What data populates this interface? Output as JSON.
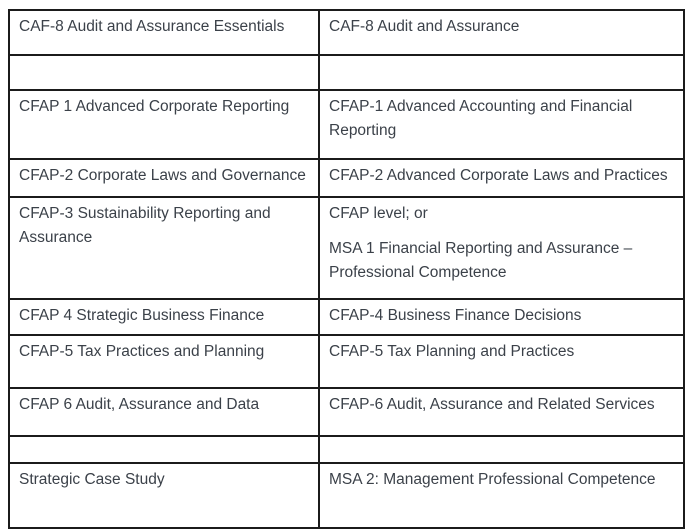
{
  "page": {
    "background": "#ffffff"
  },
  "colors": {
    "table_border": "#1b1b1b",
    "text": "#3b4149"
  },
  "table": {
    "rows": [
      {
        "left": "CAF-8 Audit and Assurance Essentials",
        "right": "CAF-8 Audit and Assurance"
      },
      {
        "left": "",
        "right": ""
      },
      {
        "left": "CFAP 1 Advanced Corporate Reporting",
        "right": "CFAP-1 Advanced Accounting and Financial Reporting"
      },
      {
        "left": "CFAP-2 Corporate Laws and Governance",
        "right": "CFAP-2 Advanced Corporate Laws and Practices"
      },
      {
        "left": "CFAP-3 Sustainability Reporting and Assurance",
        "right": "CFAP level; or",
        "right2": "MSA 1 Financial Reporting and Assurance – Professional Competence"
      },
      {
        "left": "CFAP 4 Strategic Business Finance",
        "right": "CFAP-4 Business Finance Decisions"
      },
      {
        "left": "CFAP-5 Tax Practices and Planning",
        "right": "CFAP-5 Tax Planning and Practices"
      },
      {
        "left": "CFAP 6 Audit, Assurance and Data",
        "right": "CFAP-6 Audit, Assurance and Related Services"
      },
      {
        "left": "",
        "right": ""
      },
      {
        "left": "Strategic Case Study",
        "right": "MSA 2: Management Professional Competence"
      }
    ]
  }
}
